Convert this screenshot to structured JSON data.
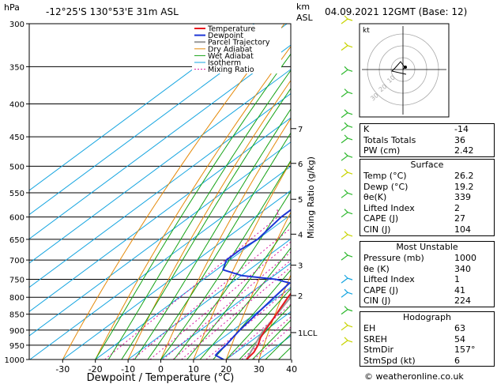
{
  "header": {
    "hpa_label": "hPa",
    "location": "-12°25'S  130°53'E  31m  ASL",
    "km_label": "km",
    "asl_label": "ASL",
    "datetime": "04.09.2021  12GMT  (Base: 12)"
  },
  "chart_data": {
    "type": "skew-t",
    "xlabel": "Dewpoint / Temperature (°C)",
    "ylabel_left": "hPa",
    "ylabel_right": "Mixing Ratio (g/kg)",
    "pressure_levels": [
      300,
      350,
      400,
      450,
      500,
      550,
      600,
      650,
      700,
      750,
      800,
      850,
      900,
      950,
      1000
    ],
    "x_ticks": [
      -30,
      -20,
      -10,
      0,
      10,
      20,
      30,
      40
    ],
    "km_ticks": [
      {
        "label": "7",
        "p": 437
      },
      {
        "label": "6",
        "p": 495
      },
      {
        "label": "5",
        "p": 563
      },
      {
        "label": "4",
        "p": 638
      },
      {
        "label": "3",
        "p": 713
      },
      {
        "label": "2",
        "p": 795
      },
      {
        "label": "1LCL",
        "p": 908
      }
    ],
    "mixing_ratio_labels": [
      "1",
      "2",
      "3",
      "4",
      "5",
      "6",
      "10",
      "15",
      "20",
      "25"
    ],
    "mixing_ratio_values": [
      1,
      2,
      3,
      4,
      5,
      6,
      10,
      15,
      20,
      25
    ],
    "legend": [
      "Temperature",
      "Dewpoint",
      "Parcel Trajectory",
      "Dry Adiabat",
      "Wet Adiabat",
      "Isotherm",
      "Mixing Ratio"
    ],
    "colors": {
      "temperature": "#e8191f",
      "dewpoint": "#1d35d6",
      "parcel": "#999999",
      "dry_adiabat": "#e58a0a",
      "wet_adiabat": "#16a316",
      "isotherm": "#15a5e0",
      "mixing_ratio": "#d6169e"
    },
    "series": [
      {
        "name": "Temperature",
        "points": [
          [
            1000,
            26.2
          ],
          [
            975,
            25.5
          ],
          [
            950,
            23.8
          ],
          [
            925,
            21.5
          ],
          [
            900,
            19.8
          ],
          [
            875,
            18.3
          ],
          [
            850,
            16.6
          ],
          [
            800,
            13.2
          ],
          [
            775,
            11.6
          ],
          [
            760,
            10.6
          ],
          [
            750,
            11.8
          ],
          [
            725,
            11.0
          ],
          [
            700,
            9.6
          ],
          [
            650,
            6.2
          ],
          [
            600,
            2.2
          ],
          [
            550,
            -2.2
          ],
          [
            500,
            -7.0
          ],
          [
            475,
            -9.8
          ],
          [
            450,
            -12.8
          ],
          [
            425,
            -16.0
          ],
          [
            400,
            -19.5
          ],
          [
            350,
            -26.0
          ],
          [
            300,
            -33.0
          ]
        ]
      },
      {
        "name": "Dewpoint",
        "points": [
          [
            1000,
            19.2
          ],
          [
            985,
            15.0
          ],
          [
            975,
            14.6
          ],
          [
            950,
            14.0
          ],
          [
            925,
            13.0
          ],
          [
            900,
            12.0
          ],
          [
            850,
            10.5
          ],
          [
            800,
            9.0
          ],
          [
            760,
            7.8
          ],
          [
            750,
            2.0
          ],
          [
            740,
            -10.0
          ],
          [
            725,
            -18.0
          ],
          [
            700,
            -21.0
          ],
          [
            675,
            -21.0
          ],
          [
            650,
            -20.0
          ],
          [
            600,
            -22.0
          ],
          [
            550,
            -22.0
          ],
          [
            535,
            -20.5
          ],
          [
            500,
            -27.0
          ],
          [
            475,
            -33.0
          ],
          [
            450,
            -40.0
          ],
          [
            400,
            -52.0
          ],
          [
            350,
            -58.0
          ],
          [
            300,
            -63.0
          ]
        ]
      },
      {
        "name": "Parcel Trajectory",
        "points": [
          [
            1000,
            26.2
          ],
          [
            908,
            19.8
          ],
          [
            850,
            16.8
          ],
          [
            800,
            14.0
          ],
          [
            700,
            8.0
          ],
          [
            600,
            1.0
          ],
          [
            500,
            -7.5
          ],
          [
            400,
            -19.5
          ],
          [
            300,
            -34.0
          ]
        ]
      }
    ]
  },
  "hodograph": {
    "label": "kt",
    "ring_labels": [
      "10",
      "20",
      "30",
      "40"
    ],
    "storm_dir_deg": 157,
    "storm_speed_kt": 6
  },
  "indices": [
    {
      "k": "K",
      "v": "-14"
    },
    {
      "k": "Totals Totals",
      "v": "36"
    },
    {
      "k": "PW (cm)",
      "v": "2.42"
    }
  ],
  "surface": {
    "title": "Surface",
    "rows": [
      {
        "k": "Temp (°C)",
        "v": "26.2"
      },
      {
        "k": "Dewp (°C)",
        "v": "19.2"
      },
      {
        "k": "θe(K)",
        "v": "339"
      },
      {
        "k": "Lifted Index",
        "v": "2"
      },
      {
        "k": "CAPE (J)",
        "v": "27"
      },
      {
        "k": "CIN (J)",
        "v": "104"
      }
    ]
  },
  "most_unstable": {
    "title": "Most Unstable",
    "rows": [
      {
        "k": "Pressure (mb)",
        "v": "1000"
      },
      {
        "k": "θe (K)",
        "v": "340"
      },
      {
        "k": "Lifted Index",
        "v": "1"
      },
      {
        "k": "CAPE (J)",
        "v": "41"
      },
      {
        "k": "CIN (J)",
        "v": "224"
      }
    ]
  },
  "hodograph_table": {
    "title": "Hodograph",
    "rows": [
      {
        "k": "EH",
        "v": "63"
      },
      {
        "k": "SREH",
        "v": "54"
      },
      {
        "k": "StmDir",
        "v": "157°"
      },
      {
        "k": "StmSpd (kt)",
        "v": "6"
      }
    ]
  },
  "footer": "© weatheronline.co.uk"
}
